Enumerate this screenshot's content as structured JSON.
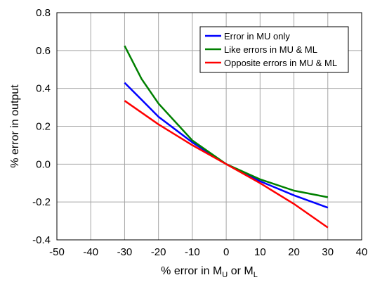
{
  "chart_data": {
    "type": "line",
    "xlabel": {
      "prefix": "% error in M",
      "sub1": "U",
      "mid": " or M",
      "sub2": "L"
    },
    "ylabel": "% error in output",
    "xlim": [
      -50,
      40
    ],
    "ylim": [
      -0.4,
      0.8
    ],
    "x_ticks": [
      -50,
      -40,
      -30,
      -20,
      -10,
      0,
      10,
      20,
      30,
      40
    ],
    "x_tick_labels": [
      "-50",
      "-40",
      "-30",
      "-20",
      "-10",
      "0",
      "10",
      "20",
      "30",
      "40"
    ],
    "y_ticks": [
      -0.4,
      -0.2,
      0.0,
      0.2,
      0.4,
      0.6,
      0.8
    ],
    "y_tick_labels": [
      "-0.4",
      "-0.2",
      "0.0",
      "0.2",
      "0.4",
      "0.6",
      "0.8"
    ],
    "grid": true,
    "legend_position": "top-right",
    "series": [
      {
        "name": "Error in MU only",
        "color": "#0000ff",
        "x": [
          -30,
          -25,
          -20,
          -10,
          0,
          10,
          20,
          30
        ],
        "y": [
          0.43,
          0.34,
          0.25,
          0.115,
          0.0,
          -0.09,
          -0.165,
          -0.23
        ]
      },
      {
        "name": "Like errors in MU & ML",
        "color": "#008000",
        "x": [
          -30,
          -25,
          -20,
          -10,
          0,
          10,
          20,
          30
        ],
        "y": [
          0.625,
          0.45,
          0.32,
          0.125,
          0.0,
          -0.08,
          -0.14,
          -0.175
        ]
      },
      {
        "name": "Opposite errors in MU & ML",
        "color": "#ff0000",
        "x": [
          -30,
          -20,
          -10,
          0,
          10,
          20,
          30
        ],
        "y": [
          0.335,
          0.21,
          0.1,
          0.0,
          -0.1,
          -0.21,
          -0.335
        ]
      }
    ]
  }
}
